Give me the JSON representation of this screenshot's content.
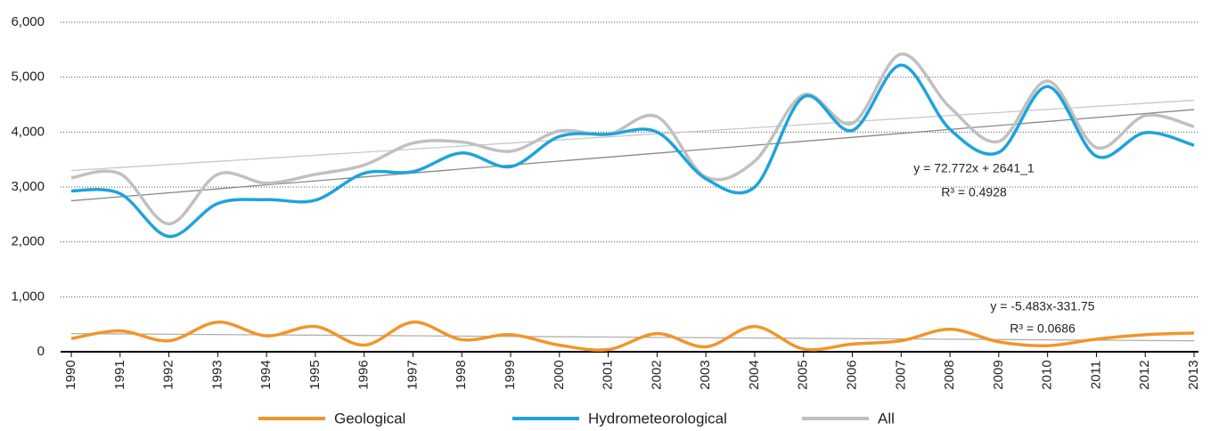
{
  "chart_data": {
    "type": "line",
    "categories": [
      "1990",
      "1991",
      "1992",
      "1993",
      "1994",
      "1995",
      "1996",
      "1997",
      "1998",
      "1999",
      "2000",
      "2001",
      "2002",
      "2003",
      "2004",
      "2005",
      "2006",
      "2007",
      "2008",
      "2009",
      "2010",
      "2011",
      "2012",
      "2013"
    ],
    "series": [
      {
        "name": "Geological",
        "color": "#f0962a",
        "values": [
          240,
          380,
          200,
          540,
          290,
          460,
          120,
          540,
          220,
          310,
          120,
          40,
          330,
          90,
          460,
          50,
          140,
          200,
          410,
          180,
          110,
          230,
          310,
          340
        ]
      },
      {
        "name": "Hydrometeorological",
        "color": "#1ea3dc",
        "values": [
          2930,
          2880,
          2100,
          2700,
          2770,
          2760,
          3250,
          3280,
          3620,
          3370,
          3920,
          3960,
          4000,
          3150,
          3000,
          4640,
          4030,
          5220,
          4050,
          3630,
          4830,
          3560,
          3990,
          3760
        ]
      },
      {
        "name": "All",
        "color": "#c0c0c0",
        "values": [
          3170,
          3240,
          2330,
          3230,
          3070,
          3230,
          3400,
          3800,
          3820,
          3650,
          4020,
          3960,
          4280,
          3180,
          3470,
          4680,
          4160,
          5420,
          4450,
          3830,
          4930,
          3720,
          4300,
          4100
        ]
      }
    ],
    "trendlines": [
      {
        "color": "#b0b0b0",
        "values": [
          330,
          200
        ]
      },
      {
        "color": "#888888",
        "values": [
          2750,
          4410
        ]
      },
      {
        "color": "#c8c8c8",
        "values": [
          3300,
          4580
        ]
      }
    ],
    "annotations": [
      "y = 72.772x + 2641_1",
      "R³ = 0.4928",
      "y = -5.483x-331.75",
      "R³ = 0.0686"
    ],
    "ylim": [
      0,
      6000
    ],
    "yticks": [
      0,
      {
        "value": 1000,
        "label": "1,000"
      },
      {
        "value": 2000,
        "label": "2,000"
      },
      {
        "value": 3000,
        "label": "3,000"
      },
      {
        "value": 4000,
        "label": "4,000"
      },
      {
        "value": 5000,
        "label": "5,000"
      },
      {
        "value": 6000,
        "label": "6,000"
      }
    ],
    "grid": true,
    "legend": "bottom"
  }
}
